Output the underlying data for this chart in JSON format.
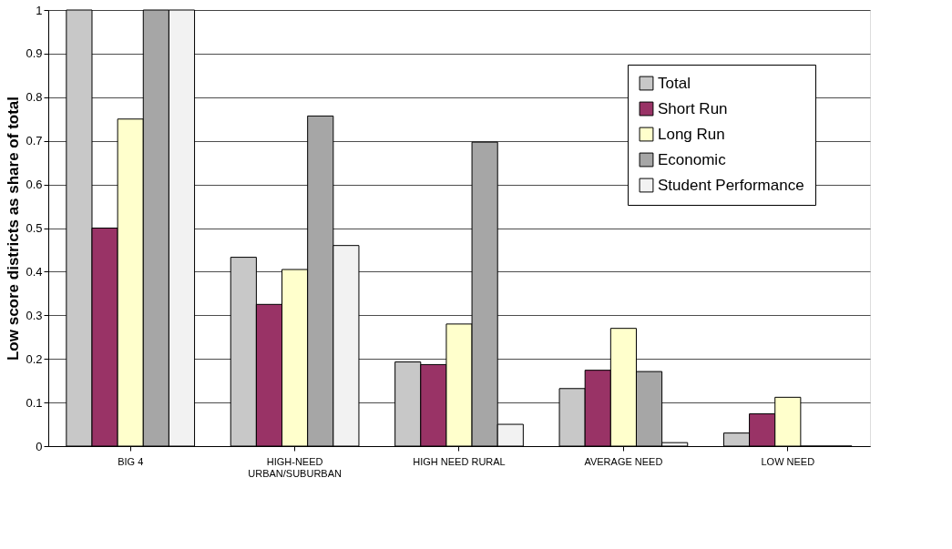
{
  "chart_data": {
    "type": "bar",
    "ylabel": "Low score districts as share of total",
    "categories": [
      "BIG 4",
      "HIGH-NEED URBAN/SUBURBAN",
      "HIGH NEED RURAL",
      "AVERAGE NEED",
      "LOW NEED"
    ],
    "series": [
      {
        "name": "Total",
        "color": "#c8c8c8",
        "values": [
          1.0,
          0.433,
          0.193,
          0.132,
          0.03
        ]
      },
      {
        "name": "Short Run",
        "color": "#993366",
        "values": [
          0.5,
          0.325,
          0.187,
          0.174,
          0.074
        ]
      },
      {
        "name": "Long Run",
        "color": "#ffffcc",
        "values": [
          0.75,
          0.405,
          0.28,
          0.27,
          0.112
        ]
      },
      {
        "name": "Economic",
        "color": "#a6a6a6",
        "values": [
          1.0,
          0.757,
          0.697,
          0.171,
          0
        ]
      },
      {
        "name": "Student Performance",
        "color": "#f2f2f2",
        "values": [
          1.0,
          0.46,
          0.05,
          0.008,
          0
        ]
      }
    ],
    "ylim": [
      0,
      1
    ],
    "yticks": [
      0,
      0.1,
      0.2,
      0.3,
      0.4,
      0.5,
      0.6,
      0.7,
      0.8,
      0.9,
      1
    ],
    "grid": "y",
    "legend": "top right"
  }
}
